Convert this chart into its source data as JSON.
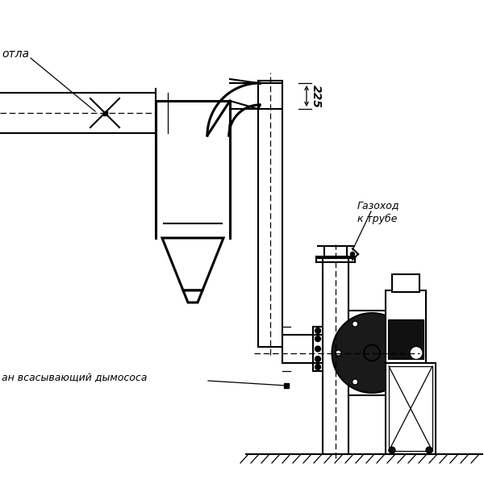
{
  "bg_color": "#ffffff",
  "lc": "#000000",
  "label_kotla": "отла",
  "label_gazohod": "Газоход\nк трубе",
  "label_vsan": "ан всасывающий дымососа",
  "dim_225": "225"
}
